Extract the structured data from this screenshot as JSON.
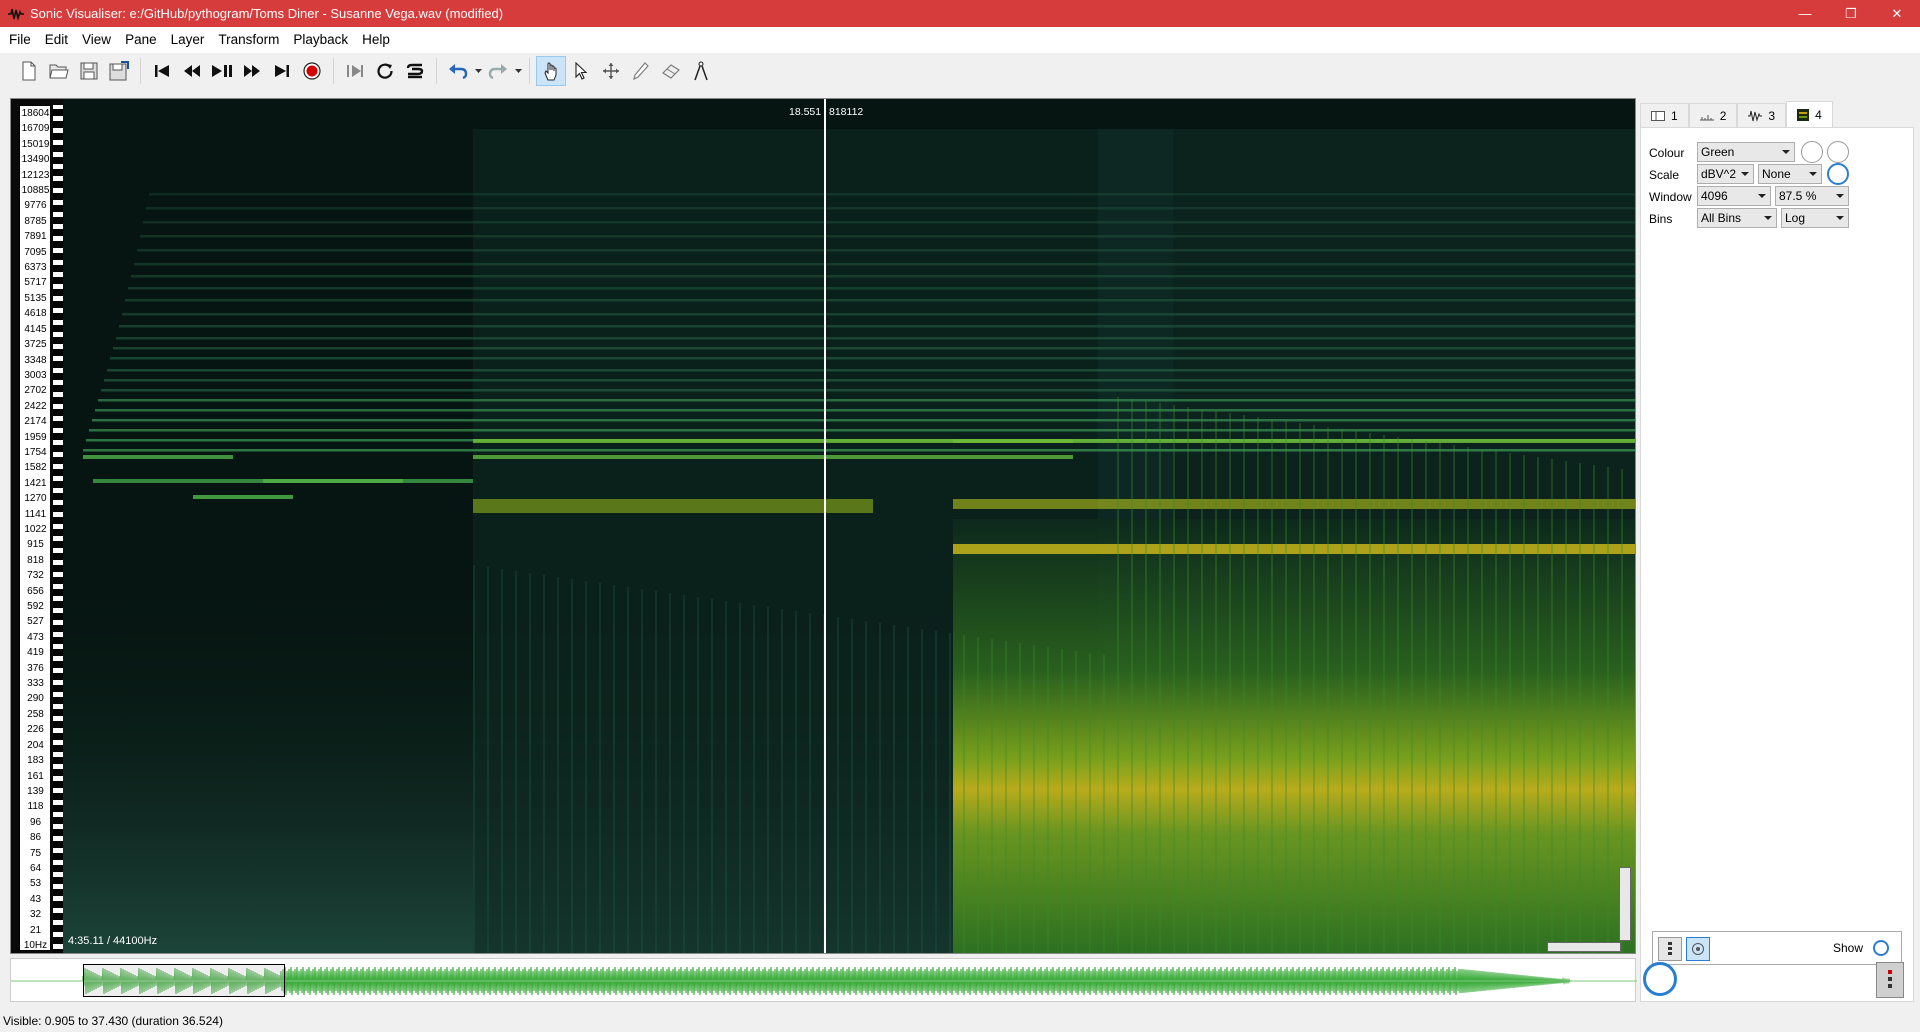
{
  "window": {
    "title": "Sonic Visualiser: e:/GitHub/pythogram/Toms Diner - Susanne Vega.wav (modified)",
    "minimize": "—",
    "restore": "❐",
    "close": "✕"
  },
  "menu": [
    "File",
    "Edit",
    "View",
    "Pane",
    "Layer",
    "Transform",
    "Playback",
    "Help"
  ],
  "pane": {
    "playhead_time": "18.551",
    "playhead_frame": "818112",
    "bottom_info": "4:35.11 / 44100Hz",
    "freq_labels": [
      "18604",
      "16709",
      "15019",
      "13490",
      "12123",
      "10885",
      "9776",
      "8785",
      "7891",
      "7095",
      "6373",
      "5717",
      "5135",
      "4618",
      "4145",
      "3725",
      "3348",
      "3003",
      "2702",
      "2422",
      "2174",
      "1959",
      "1754",
      "1582",
      "1421",
      "1270",
      "1141",
      "1022",
      "915",
      "818",
      "732",
      "656",
      "592",
      "527",
      "473",
      "419",
      "376",
      "333",
      "290",
      "258",
      "226",
      "204",
      "183",
      "161",
      "139",
      "118",
      "96",
      "86",
      "75",
      "64",
      "53",
      "43",
      "32",
      "21",
      "10Hz"
    ]
  },
  "panel": {
    "tabs": [
      {
        "label": "1",
        "icon": "pane-icon"
      },
      {
        "label": "2",
        "icon": "ruler-icon"
      },
      {
        "label": "3",
        "icon": "waveform-icon"
      },
      {
        "label": "4",
        "icon": "spectrogram-icon"
      }
    ],
    "colour_label": "Colour",
    "colour_value": "Green",
    "scale_label": "Scale",
    "scale_value": "dBV^2",
    "normalize_value": "None",
    "window_label": "Window",
    "window_value": "4096",
    "overlap_value": "87.5 %",
    "bins_label": "Bins",
    "bins_value": "All Bins",
    "freq_scale_value": "Log",
    "show_label": "Show"
  },
  "status": "Visible: 0.905 to 37.430 (duration 36.524)",
  "colors": {
    "titlebar": "#d63c3c",
    "accent": "#2a7ed2",
    "waveform": "#3fae3f"
  }
}
